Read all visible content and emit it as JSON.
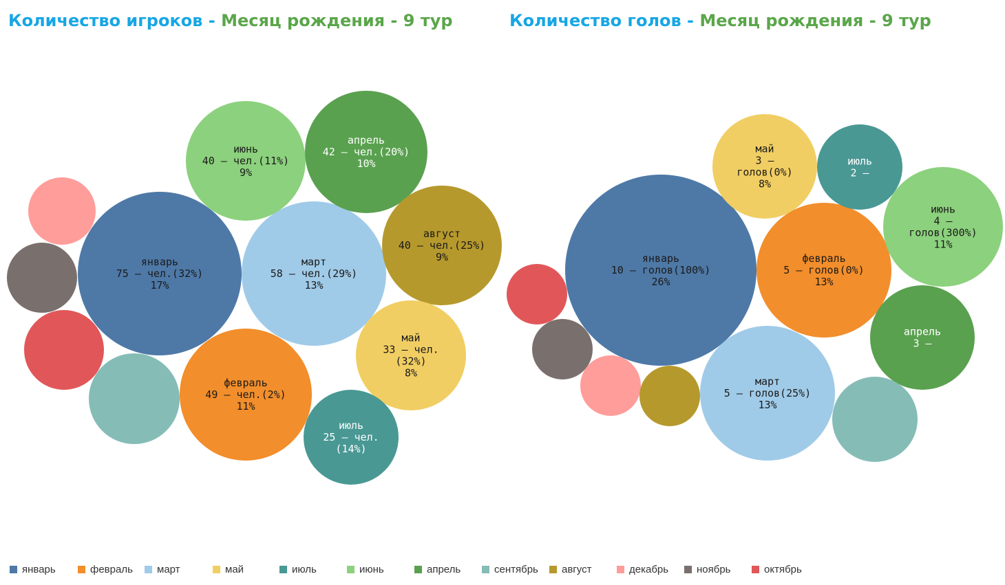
{
  "titles": [
    {
      "metric": "Количество игроков",
      "sep": " - ",
      "dimension": "Месяц рождения - 9 тур"
    },
    {
      "metric": "Количество голов",
      "sep": " - ",
      "dimension": "Месяц рождения - 9 тур"
    }
  ],
  "colors": {
    "январь": "#4e79a7",
    "февраль": "#f28e2b",
    "март": "#a0cbe8",
    "май": "#f1ce63",
    "июль": "#499894",
    "июнь": "#8cd17d",
    "апрель": "#59a14f",
    "сентябрь": "#86bcb6",
    "август": "#b6992d",
    "декабрь": "#ff9d9a",
    "ноябрь": "#79706e",
    "октябрь": "#e15759"
  },
  "legend": [
    "январь",
    "февраль",
    "март",
    "май",
    "июль",
    "июнь",
    "апрель",
    "сентябрь",
    "август",
    "декабрь",
    "ноябрь",
    "октябрь"
  ],
  "chart_data": [
    {
      "type": "bubble",
      "title": "Количество игроков - Месяц рождения - 9 тур",
      "series": [
        {
          "month": "январь",
          "value": 75,
          "label": [
            "январь",
            "75 – чел.(32%)",
            "17%"
          ]
        },
        {
          "month": "март",
          "value": 58,
          "label": [
            "март",
            "58 – чел.(29%)",
            "13%"
          ]
        },
        {
          "month": "февраль",
          "value": 49,
          "label": [
            "февраль",
            "49 – чел.(2%)",
            "11%"
          ]
        },
        {
          "month": "июнь",
          "value": 40,
          "label": [
            "июнь",
            "40 – чел.(11%)",
            "9%"
          ]
        },
        {
          "month": "апрель",
          "value": 42,
          "label": [
            "апрель",
            "42 – чел.(20%)",
            "10%"
          ]
        },
        {
          "month": "август",
          "value": 40,
          "label": [
            "август",
            "40 – чел.(25%)",
            "9%"
          ]
        },
        {
          "month": "май",
          "value": 33,
          "label": [
            "май",
            "33 – чел.",
            "(32%)",
            "8%"
          ]
        },
        {
          "month": "июль",
          "value": 25,
          "label": [
            "июль",
            "25 – чел.",
            "(14%)"
          ]
        },
        {
          "month": "сентябрь",
          "value": null,
          "label": []
        },
        {
          "month": "октябрь",
          "value": null,
          "label": []
        },
        {
          "month": "декабрь",
          "value": null,
          "label": []
        },
        {
          "month": "ноябрь",
          "value": null,
          "label": []
        }
      ]
    },
    {
      "type": "bubble",
      "title": "Количество голов - Месяц рождения - 9 тур",
      "series": [
        {
          "month": "январь",
          "value": 10,
          "label": [
            "январь",
            "10 – голов(100%)",
            "26%"
          ]
        },
        {
          "month": "февраль",
          "value": 5,
          "label": [
            "февраль",
            "5 – голов(0%)",
            "13%"
          ]
        },
        {
          "month": "март",
          "value": 5,
          "label": [
            "март",
            "5 – голов(25%)",
            "13%"
          ]
        },
        {
          "month": "июнь",
          "value": 4,
          "label": [
            "июнь",
            "4 –",
            "голов(300%)",
            "11%"
          ]
        },
        {
          "month": "май",
          "value": 3,
          "label": [
            "май",
            "3 –",
            "голов(0%)",
            "8%"
          ]
        },
        {
          "month": "апрель",
          "value": 3,
          "label": [
            "апрель",
            "3 –"
          ]
        },
        {
          "month": "июль",
          "value": 2,
          "label": [
            "июль",
            "2 –"
          ]
        },
        {
          "month": "сентябрь",
          "value": null,
          "label": []
        },
        {
          "month": "октябрь",
          "value": null,
          "label": []
        },
        {
          "month": "ноябрь",
          "value": null,
          "label": []
        },
        {
          "month": "декабрь",
          "value": null,
          "label": []
        },
        {
          "month": "август",
          "value": null,
          "label": []
        }
      ]
    }
  ]
}
